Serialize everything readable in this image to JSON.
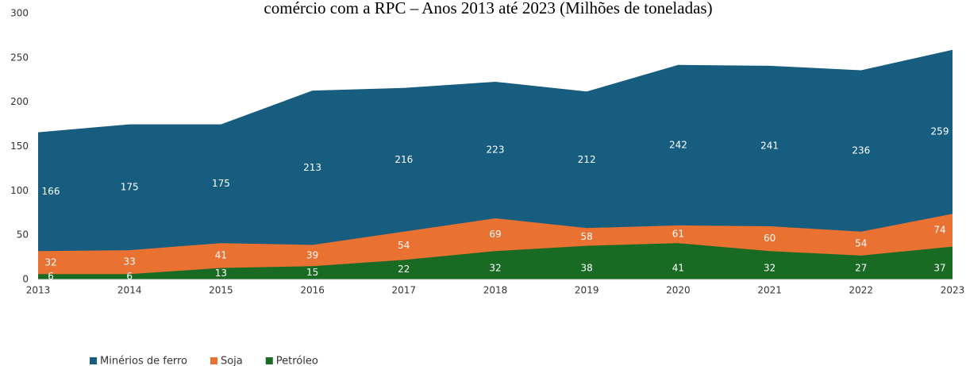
{
  "chart_data": {
    "type": "area",
    "title": "comércio com a RPC – Anos 2013 até 2023 (Milhões de toneladas)",
    "categories": [
      "2013",
      "2014",
      "2015",
      "2016",
      "2017",
      "2018",
      "2019",
      "2020",
      "2021",
      "2022",
      "2023"
    ],
    "series": [
      {
        "name": "Minérios de ferro",
        "color": "#175d80",
        "values": [
          166,
          175,
          175,
          213,
          216,
          223,
          212,
          242,
          241,
          236,
          259
        ]
      },
      {
        "name": "Soja",
        "color": "#e97132",
        "values": [
          32,
          33,
          41,
          39,
          54,
          69,
          58,
          61,
          60,
          54,
          74
        ]
      },
      {
        "name": "Petróleo",
        "color": "#196b24",
        "values": [
          6,
          6,
          13,
          15,
          22,
          32,
          38,
          41,
          32,
          27,
          37
        ]
      }
    ],
    "ylim": [
      0,
      300
    ],
    "yticks": [
      0,
      50,
      100,
      150,
      200,
      250,
      300
    ]
  }
}
